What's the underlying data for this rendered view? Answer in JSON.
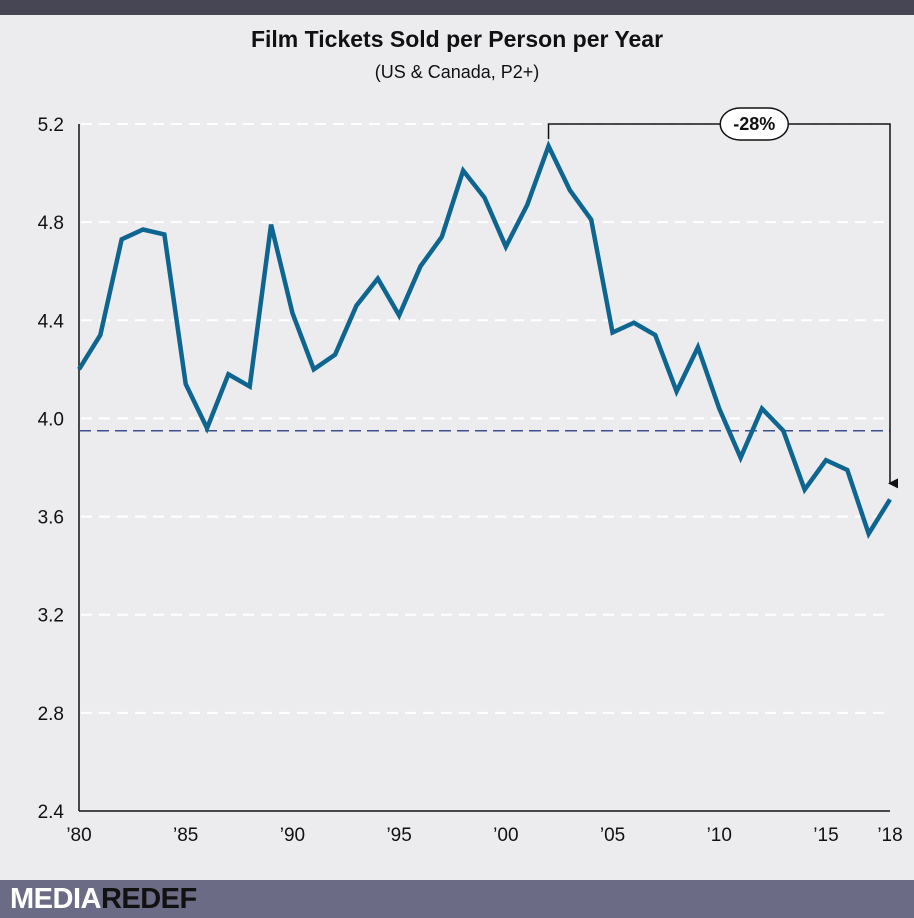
{
  "title": "Film Tickets Sold per Person per Year",
  "subtitle": "(US & Canada, P2+)",
  "annotation": {
    "label": "-28%"
  },
  "logo": {
    "part1": "MEDIA",
    "part2": "REDEF"
  },
  "colors": {
    "line": "#0e6590",
    "reference": "#3a4f8c",
    "grid": "#ffffff",
    "background": "#ececef"
  },
  "chart_data": {
    "type": "line",
    "title": "Film Tickets Sold per Person per Year",
    "subtitle": "(US & Canada, P2+)",
    "ylim": [
      2.4,
      5.2
    ],
    "xlim": [
      1980,
      2018
    ],
    "yticks": [
      "2.4",
      "2.8",
      "3.2",
      "3.6",
      "4.0",
      "4.4",
      "4.8",
      "5.2"
    ],
    "xticks": [
      {
        "x": 1980,
        "label": "’80"
      },
      {
        "x": 1985,
        "label": "’85"
      },
      {
        "x": 1990,
        "label": "’90"
      },
      {
        "x": 1995,
        "label": "’95"
      },
      {
        "x": 2000,
        "label": "’00"
      },
      {
        "x": 2005,
        "label": "’05"
      },
      {
        "x": 2010,
        "label": "’10"
      },
      {
        "x": 2015,
        "label": "’15"
      },
      {
        "x": 2018,
        "label": "’18"
      }
    ],
    "grid": "horizontal dashed",
    "reference_line": 3.95,
    "annotation": {
      "label": "-28%",
      "from_year": 2002,
      "to_year": 2018
    },
    "x": [
      1980,
      1981,
      1982,
      1983,
      1984,
      1985,
      1986,
      1987,
      1988,
      1989,
      1990,
      1991,
      1992,
      1993,
      1994,
      1995,
      1996,
      1997,
      1998,
      1999,
      2000,
      2001,
      2002,
      2003,
      2004,
      2005,
      2006,
      2007,
      2008,
      2009,
      2010,
      2011,
      2012,
      2013,
      2014,
      2015,
      2016,
      2017,
      2018
    ],
    "values": [
      4.2,
      4.34,
      4.73,
      4.77,
      4.75,
      4.14,
      3.96,
      4.18,
      4.13,
      4.79,
      4.43,
      4.2,
      4.26,
      4.46,
      4.57,
      4.42,
      4.62,
      4.74,
      5.01,
      4.9,
      4.7,
      4.87,
      5.11,
      4.93,
      4.81,
      4.35,
      4.39,
      4.34,
      4.11,
      4.29,
      4.04,
      3.84,
      4.04,
      3.95,
      3.71,
      3.83,
      3.79,
      3.53,
      3.67
    ]
  }
}
